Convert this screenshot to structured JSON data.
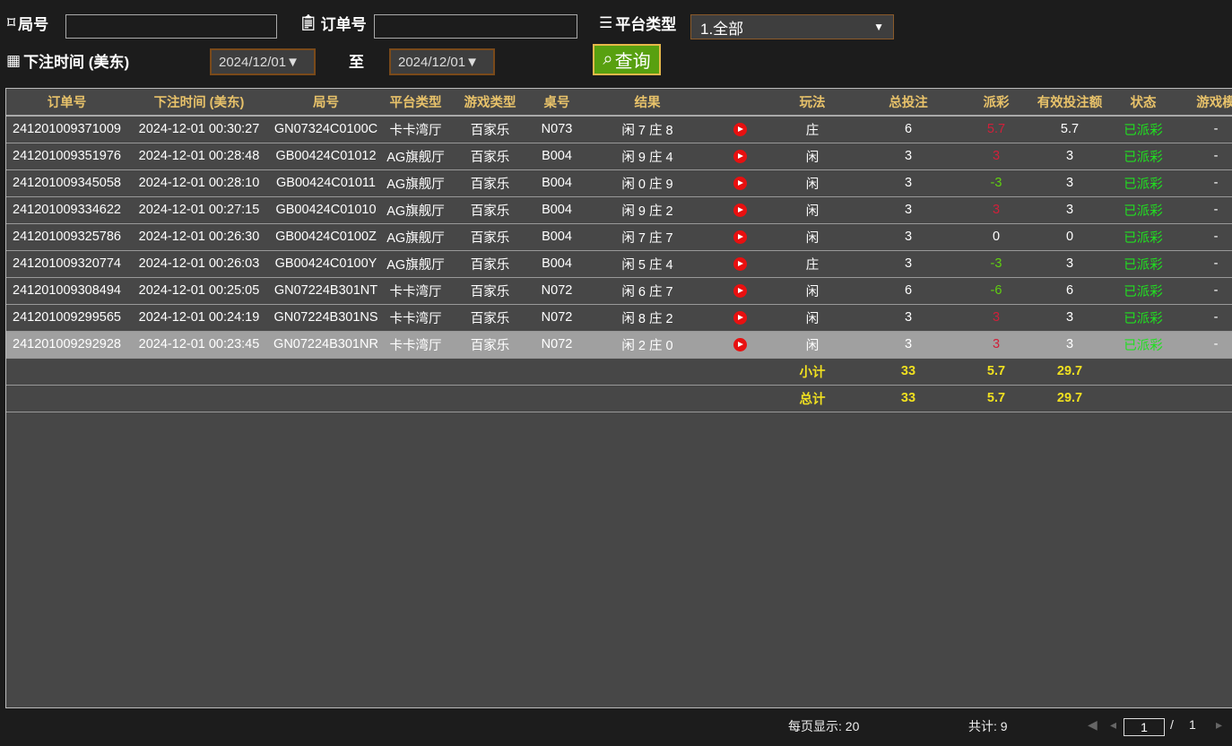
{
  "filters": {
    "round_label": "局号",
    "round_value": "",
    "order_label": "订单号",
    "order_value": "",
    "platform_label": "平台类型",
    "platform_value": "1.全部",
    "time_label": "下注时间 (美东)",
    "date_from": "2024/12/01",
    "to_label": "至",
    "date_to": "2024/12/01",
    "search_label": "查询"
  },
  "table": {
    "headers": [
      "订单号",
      "下注时间 (美东)",
      "局号",
      "平台类型",
      "游戏类型",
      "桌号",
      "结果",
      "",
      "玩法",
      "总投注",
      "派彩",
      "有效投注额",
      "状态",
      "游戏模"
    ],
    "rows": [
      [
        "241201009371009",
        "2024-12-01 00:30:27",
        "GN07324C0100C",
        "卡卡湾厅",
        "百家乐",
        "N073",
        "闲 7 庄 8",
        "play",
        "庄",
        "6",
        "5.7",
        "5.7",
        "已派彩",
        "-"
      ],
      [
        "241201009351976",
        "2024-12-01 00:28:48",
        "GB00424C01012",
        "AG旗舰厅",
        "百家乐",
        "B004",
        "闲 9 庄 4",
        "play",
        "闲",
        "3",
        "3",
        "3",
        "已派彩",
        "-"
      ],
      [
        "241201009345058",
        "2024-12-01 00:28:10",
        "GB00424C01011",
        "AG旗舰厅",
        "百家乐",
        "B004",
        "闲 0 庄 9",
        "play",
        "闲",
        "3",
        "-3",
        "3",
        "已派彩",
        "-"
      ],
      [
        "241201009334622",
        "2024-12-01 00:27:15",
        "GB00424C01010",
        "AG旗舰厅",
        "百家乐",
        "B004",
        "闲 9 庄 2",
        "play",
        "闲",
        "3",
        "3",
        "3",
        "已派彩",
        "-"
      ],
      [
        "241201009325786",
        "2024-12-01 00:26:30",
        "GB00424C0100Z",
        "AG旗舰厅",
        "百家乐",
        "B004",
        "闲 7 庄 7",
        "play",
        "闲",
        "3",
        "0",
        "0",
        "已派彩",
        "-"
      ],
      [
        "241201009320774",
        "2024-12-01 00:26:03",
        "GB00424C0100Y",
        "AG旗舰厅",
        "百家乐",
        "B004",
        "闲 5 庄 4",
        "play",
        "庄",
        "3",
        "-3",
        "3",
        "已派彩",
        "-"
      ],
      [
        "241201009308494",
        "2024-12-01 00:25:05",
        "GN07224B301NT",
        "卡卡湾厅",
        "百家乐",
        "N072",
        "闲 6 庄 7",
        "play",
        "闲",
        "6",
        "-6",
        "6",
        "已派彩",
        "-"
      ],
      [
        "241201009299565",
        "2024-12-01 00:24:19",
        "GN07224B301NS",
        "卡卡湾厅",
        "百家乐",
        "N072",
        "闲 8 庄 2",
        "play",
        "闲",
        "3",
        "3",
        "3",
        "已派彩",
        "-"
      ],
      [
        "241201009292928",
        "2024-12-01 00:23:45",
        "GN07224B301NR",
        "卡卡湾厅",
        "百家乐",
        "N072",
        "闲 2 庄 0",
        "play",
        "闲",
        "3",
        "3",
        "3",
        "已派彩",
        "-"
      ]
    ],
    "subtotal": {
      "label": "小计",
      "total_bet": "33",
      "payout": "5.7",
      "valid_bet": "29.7"
    },
    "total": {
      "label": "总计",
      "total_bet": "33",
      "payout": "5.7",
      "valid_bet": "29.7"
    }
  },
  "colors": {
    "positive_payout": "#d0203a",
    "negative_payout": "#60d010",
    "status": "#20e020",
    "header": "#e8c26a",
    "sum": "#f0e020"
  },
  "footer": {
    "per_page": "每页显示: 20",
    "total": "共计: 9",
    "page": "1",
    "sep": "/",
    "pages": "1"
  }
}
